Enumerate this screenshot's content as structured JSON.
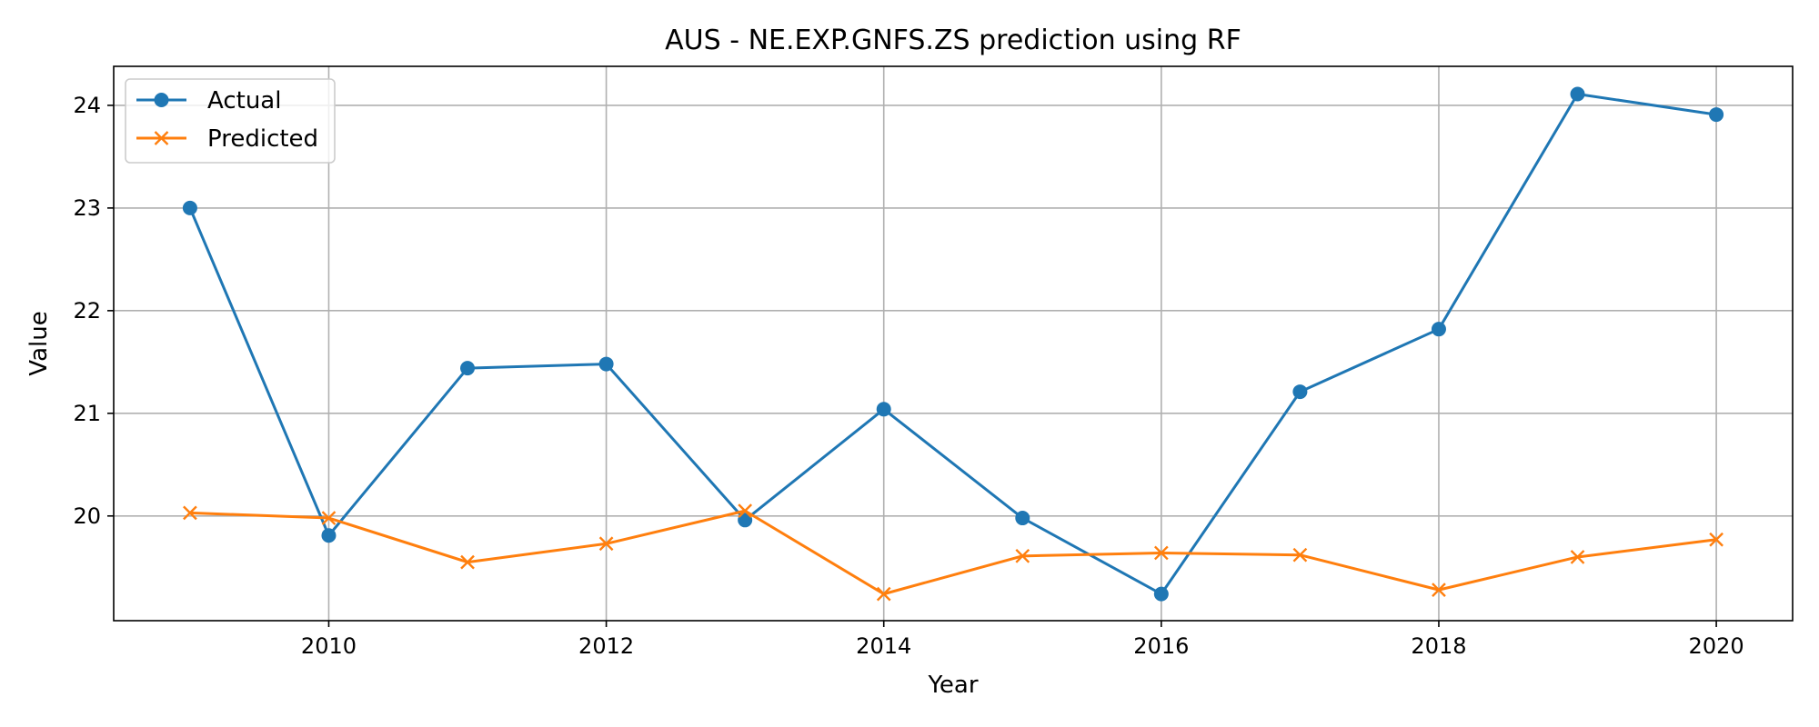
{
  "chart_data": {
    "type": "line",
    "title": "AUS - NE.EXP.GNFS.ZS prediction using RF",
    "xlabel": "Year",
    "ylabel": "Value",
    "x": [
      2009,
      2010,
      2011,
      2012,
      2013,
      2014,
      2015,
      2016,
      2017,
      2018,
      2019,
      2020
    ],
    "xlim": [
      2008.45,
      2020.55
    ],
    "ylim": [
      18.98,
      24.38
    ],
    "xticks": [
      2010,
      2012,
      2014,
      2016,
      2018,
      2020
    ],
    "yticks": [
      20,
      21,
      22,
      23,
      24
    ],
    "grid": true,
    "legend_position": "top-left",
    "series": [
      {
        "name": "Actual",
        "marker": "circle",
        "color": "#1f77b4",
        "values": [
          23.0,
          19.81,
          21.44,
          21.48,
          19.96,
          21.04,
          19.98,
          19.24,
          21.21,
          21.82,
          24.11,
          23.91
        ]
      },
      {
        "name": "Predicted",
        "marker": "x",
        "color": "#ff7f0e",
        "values": [
          20.03,
          19.98,
          19.55,
          19.73,
          20.05,
          19.24,
          19.61,
          19.64,
          19.62,
          19.28,
          19.6,
          19.77
        ]
      }
    ]
  }
}
